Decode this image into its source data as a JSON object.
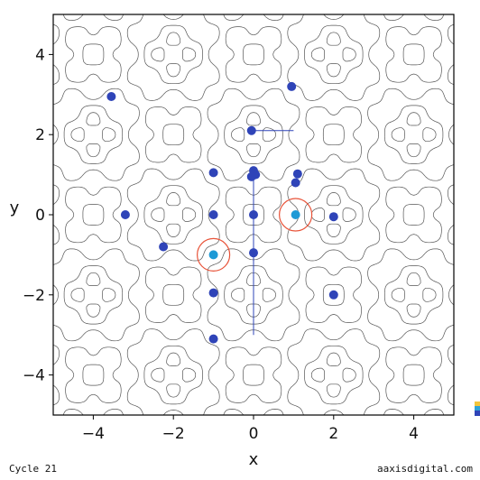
{
  "chart_data": {
    "type": "scatter",
    "xlabel": "x",
    "ylabel": "y",
    "xlim": [
      -5,
      5
    ],
    "ylim": [
      -5,
      5
    ],
    "xticks": [
      -4,
      -2,
      0,
      2,
      4
    ],
    "yticks": [
      -4,
      -2,
      0,
      2,
      4
    ],
    "grid": false,
    "background": "contour lines of a periodic 2D function",
    "contour_color": "#555555",
    "series": [
      {
        "color": "#2f44b8",
        "points": [
          {
            "x": -3.55,
            "y": 2.95
          },
          {
            "x": 0.95,
            "y": 3.2
          },
          {
            "x": -0.05,
            "y": 2.1
          },
          {
            "x": -1.0,
            "y": 1.05
          },
          {
            "x": 0.0,
            "y": 1.1
          },
          {
            "x": 0.05,
            "y": 1.0
          },
          {
            "x": -0.05,
            "y": 0.95
          },
          {
            "x": 1.1,
            "y": 1.02
          },
          {
            "x": 1.05,
            "y": 0.8
          },
          {
            "x": -3.2,
            "y": 0.0
          },
          {
            "x": -1.0,
            "y": 0.0
          },
          {
            "x": 0.0,
            "y": 0.0
          },
          {
            "x": 2.0,
            "y": -0.05
          },
          {
            "x": -2.25,
            "y": -0.8
          },
          {
            "x": 0.0,
            "y": -0.95
          },
          {
            "x": -1.0,
            "y": -1.95
          },
          {
            "x": 2.0,
            "y": -2.0
          },
          {
            "x": -1.0,
            "y": -3.1
          }
        ]
      },
      {
        "color": "#1e9ad6",
        "points": [
          {
            "x": -1.0,
            "y": -1.0
          },
          {
            "x": 1.05,
            "y": 0.0
          }
        ]
      }
    ],
    "highlight_circles": [
      {
        "x": -1.0,
        "y": -1.0,
        "color": "#e8543a"
      },
      {
        "x": 1.05,
        "y": 0.0,
        "color": "#e8543a"
      }
    ],
    "lines": [
      {
        "from": [
          -0.05,
          2.1
        ],
        "to": [
          1.0,
          2.1
        ],
        "color": "#2f44b8"
      },
      {
        "from": [
          0.0,
          1.0
        ],
        "to": [
          0.0,
          -3.0
        ],
        "color": "#2f44b8"
      }
    ]
  },
  "footer": {
    "left": "Cycle 21",
    "right": "aaxisdigital.com"
  },
  "colors": {
    "legend_top": "#f2c53d",
    "legend_mid": "#2fa3d8",
    "legend_bot": "#2f44b8"
  }
}
